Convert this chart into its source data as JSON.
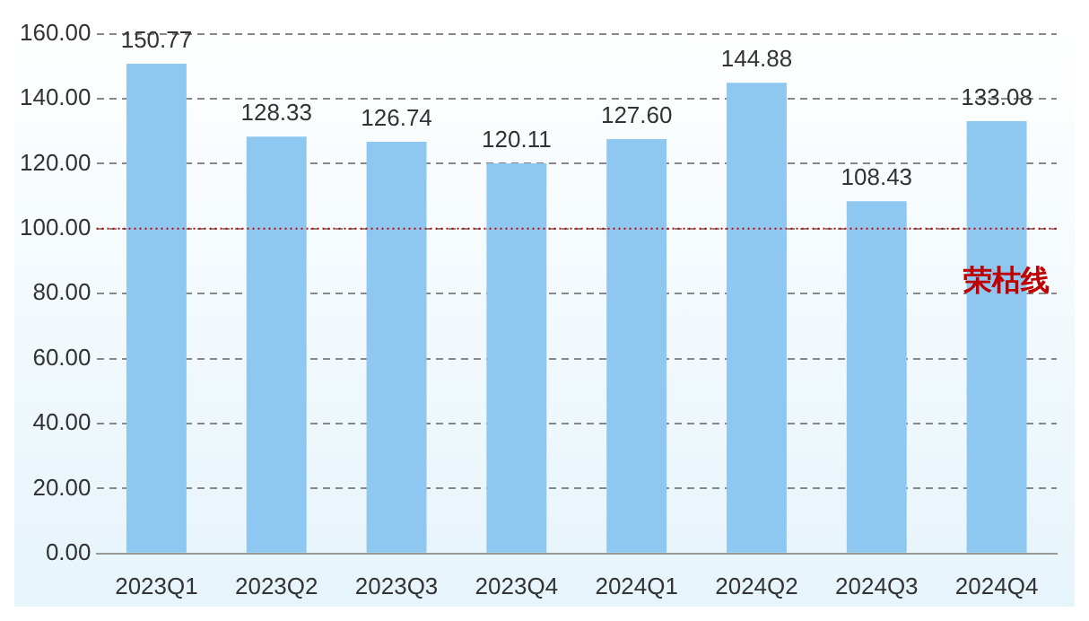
{
  "chart_data": {
    "type": "bar",
    "categories": [
      "2023Q1",
      "2023Q2",
      "2023Q3",
      "2023Q4",
      "2024Q1",
      "2024Q2",
      "2024Q3",
      "2024Q4"
    ],
    "values": [
      150.77,
      128.33,
      126.74,
      120.11,
      127.6,
      144.88,
      108.43,
      133.08
    ],
    "value_labels": [
      "150.77",
      "128.33",
      "126.74",
      "120.11",
      "127.60",
      "144.88",
      "108.43",
      "133.08"
    ],
    "color": "#8ec8f0",
    "ylim": [
      0,
      160
    ],
    "yticks": [
      {
        "value": 0,
        "label": "0.00"
      },
      {
        "value": 20,
        "label": "20.00"
      },
      {
        "value": 40,
        "label": "40.00"
      },
      {
        "value": 60,
        "label": "60.00"
      },
      {
        "value": 80,
        "label": "80.00"
      },
      {
        "value": 100,
        "label": "100.00"
      },
      {
        "value": 120,
        "label": "120.00"
      },
      {
        "value": 140,
        "label": "140.00"
      },
      {
        "value": 160,
        "label": "160.00"
      }
    ],
    "grid": "y",
    "ref_lines": [
      {
        "axis": "y",
        "value": 100,
        "label": "荣枯线",
        "color": "#c00000",
        "line_style": "dotted"
      }
    ]
  }
}
